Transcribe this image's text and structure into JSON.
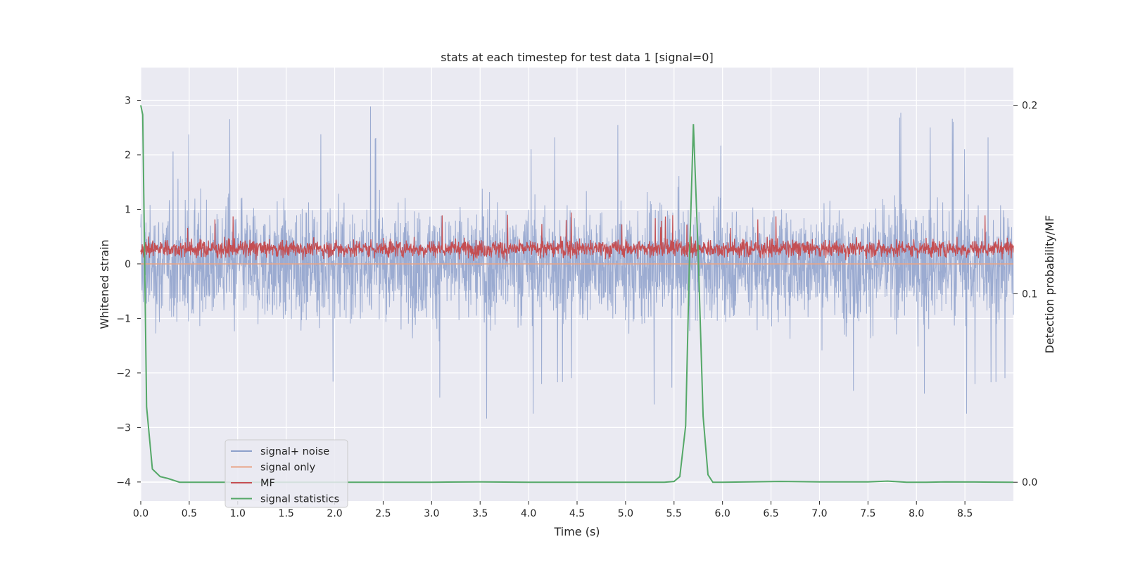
{
  "chart_data": {
    "type": "line",
    "title": "stats at each timestep for test data 1 [signal=0]",
    "xlabel": "Time (s)",
    "ylabel": "Whitened strain",
    "y2label": "Detection probability/MF",
    "xlim": [
      0.0,
      9.0
    ],
    "ylim": [
      -4.35,
      3.6
    ],
    "y2lim": [
      -0.01,
      0.22
    ],
    "xticks": [
      "0.0",
      "0.5",
      "1.0",
      "1.5",
      "2.0",
      "2.5",
      "3.0",
      "3.5",
      "4.0",
      "4.5",
      "5.0",
      "5.5",
      "6.0",
      "6.5",
      "7.0",
      "7.5",
      "8.0",
      "8.5"
    ],
    "yticks": [
      "3",
      "2",
      "1",
      "0",
      "−1",
      "−2",
      "−3",
      "−4"
    ],
    "y2ticks": [
      "0.2",
      "0.1",
      "0.0"
    ],
    "grid": true,
    "legend_position": "lower-left",
    "legend": [
      "signal+ noise",
      "signal only",
      "MF",
      "signal statistics"
    ],
    "colors": {
      "plot_background": "#eaeaf2",
      "signal_noise": "#8da0cb",
      "signal_only": "#e8a385",
      "mf": "#c44e52",
      "signal_statistics": "#55a868",
      "grid": "#ffffff"
    },
    "series": [
      {
        "name": "signal+ noise",
        "axis": "left",
        "note_envelope": "noise between about -2.9 and 3.2 whitened strain",
        "envelope_max": 3.25,
        "envelope_min": -2.95
      },
      {
        "name": "signal only",
        "axis": "left",
        "values_constant": 0.0
      },
      {
        "name": "MF",
        "axis": "left",
        "envelope_min": 0.0,
        "envelope_max": 1.0
      },
      {
        "name": "signal statistics",
        "axis": "right",
        "x": [
          0.0,
          0.02,
          0.06,
          0.12,
          0.2,
          0.28,
          0.4,
          0.6,
          1.0,
          2.0,
          3.0,
          3.5,
          4.0,
          5.0,
          5.4,
          5.5,
          5.56,
          5.62,
          5.66,
          5.7,
          5.75,
          5.8,
          5.85,
          5.9,
          6.0,
          6.6,
          7.0,
          7.5,
          7.7,
          7.9,
          8.1,
          8.3,
          8.6,
          9.0
        ],
        "y": [
          0.2,
          0.195,
          0.04,
          0.007,
          0.003,
          0.002,
          0.0,
          0.0,
          0.0,
          0.0,
          0.0,
          0.0002,
          0.0,
          0.0,
          0.0,
          0.0004,
          0.003,
          0.03,
          0.12,
          0.19,
          0.12,
          0.035,
          0.004,
          0.0,
          0.0,
          0.0004,
          0.0002,
          0.0002,
          0.0006,
          0.0,
          0.0,
          0.0002,
          0.0001,
          0.0
        ]
      }
    ]
  }
}
